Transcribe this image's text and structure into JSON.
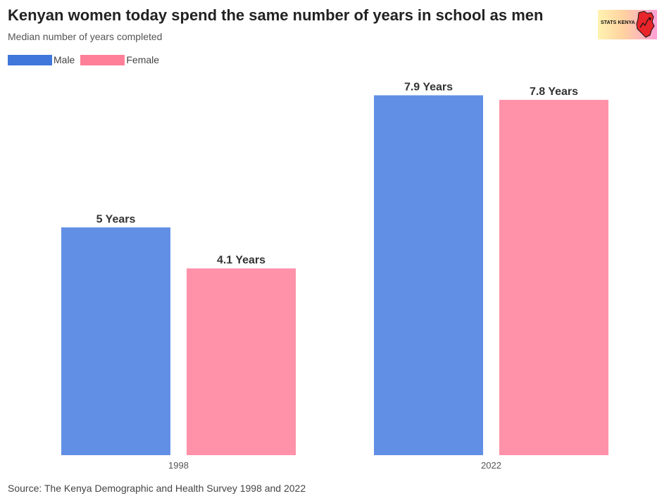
{
  "title": "Kenyan women today spend the same number of years in school as men",
  "subtitle": "Median number of years completed",
  "source": "Source: The Kenya Demographic and Health Survey 1998 and 2022",
  "logo": {
    "text": "STATS KENYA",
    "icon": "kenya-map-icon"
  },
  "colors": {
    "male": "#618FE6",
    "female": "#FF91A8",
    "male_legend": "#3F77DB",
    "female_legend": "#FF7F98"
  },
  "chart_data": {
    "type": "bar",
    "title": "Kenyan women today spend the same number of years in school as men",
    "subtitle": "Median number of years completed",
    "xlabel": "",
    "ylabel": "",
    "grid": false,
    "legend_position": "top-left",
    "ylim": [
      0,
      8
    ],
    "categories": [
      "1998",
      "2022"
    ],
    "series": [
      {
        "name": "Male",
        "values": [
          5,
          7.9
        ],
        "labels": [
          "5 Years",
          "7.9 Years"
        ]
      },
      {
        "name": "Female",
        "values": [
          4.1,
          7.8
        ],
        "labels": [
          "4.1 Years",
          "7.8 Years"
        ]
      }
    ]
  }
}
